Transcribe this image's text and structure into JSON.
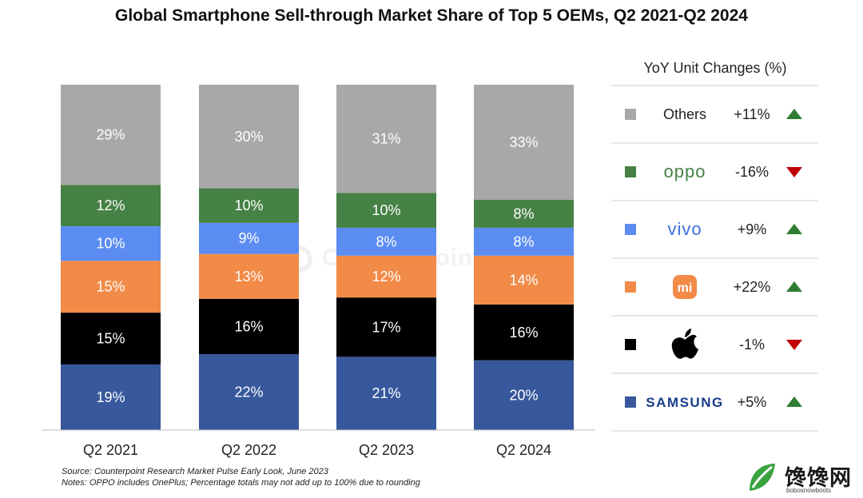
{
  "title": "Global Smartphone Sell-through Market Share of Top 5 OEMs, Q2 2021-Q2 2024",
  "source": "Source: Counterpoint Research Market Pulse Early Look, June 2023",
  "notes": "Notes: OPPO includes OnePlus; Percentage totals may not add up to 100% due to rounding",
  "watermark": "Counterpoint",
  "site_logo": {
    "name": "馋馋网",
    "domain": "bobosnowboots"
  },
  "colors": {
    "samsung": "#37589c",
    "apple": "#000000",
    "xiaomi": "#f28b48",
    "vivo": "#5b8cf2",
    "oppo": "#468145",
    "others": "#a8a8a8",
    "up": "#2e7d32",
    "down": "#c00000"
  },
  "chart_data": {
    "type": "bar",
    "stacked": true,
    "categories": [
      "Q2 2021",
      "Q2 2022",
      "Q2 2023",
      "Q2 2024"
    ],
    "series": [
      {
        "name": "Samsung",
        "key": "samsung",
        "values": [
          19,
          22,
          21,
          20
        ],
        "labels": [
          "19%",
          "22%",
          "21%",
          "20%"
        ]
      },
      {
        "name": "Apple",
        "key": "apple",
        "values": [
          15,
          16,
          17,
          16
        ],
        "labels": [
          "15%",
          "16%",
          "17%",
          "16%"
        ]
      },
      {
        "name": "Xiaomi",
        "key": "xiaomi",
        "values": [
          15,
          13,
          12,
          14
        ],
        "labels": [
          "15%",
          "13%",
          "12%",
          "14%"
        ]
      },
      {
        "name": "vivo",
        "key": "vivo",
        "values": [
          10,
          9,
          8,
          8
        ],
        "labels": [
          "10%",
          "9%",
          "8%",
          "8%"
        ]
      },
      {
        "name": "OPPO",
        "key": "oppo",
        "values": [
          12,
          10,
          10,
          8
        ],
        "labels": [
          "12%",
          "10%",
          "10%",
          "8%"
        ]
      },
      {
        "name": "Others",
        "key": "others",
        "values": [
          29,
          30,
          31,
          33
        ],
        "labels": [
          "29%",
          "30%",
          "31%",
          "33%"
        ]
      }
    ],
    "title": "Global Smartphone Sell-through Market Share of Top 5 OEMs, Q2 2021-Q2 2024",
    "xlabel": "",
    "ylabel": "",
    "ylim": [
      0,
      100
    ],
    "legend": {
      "title": "YoY Unit Changes (%)",
      "placement": "right",
      "items": [
        {
          "key": "others",
          "label": "Others",
          "logo": "text",
          "change": "+11%",
          "direction": "up"
        },
        {
          "key": "oppo",
          "label": "oppo",
          "logo": "oppo-wordmark",
          "change": "-16%",
          "direction": "down"
        },
        {
          "key": "vivo",
          "label": "vivo",
          "logo": "vivo-wordmark",
          "change": "+9%",
          "direction": "up"
        },
        {
          "key": "xiaomi",
          "label": "mi",
          "logo": "xiaomi-mi-logo",
          "change": "+22%",
          "direction": "up"
        },
        {
          "key": "apple",
          "label": "",
          "logo": "apple-logo",
          "change": "-1%",
          "direction": "down"
        },
        {
          "key": "samsung",
          "label": "SAMSUNG",
          "logo": "samsung-wordmark",
          "change": "+5%",
          "direction": "up"
        }
      ]
    }
  }
}
